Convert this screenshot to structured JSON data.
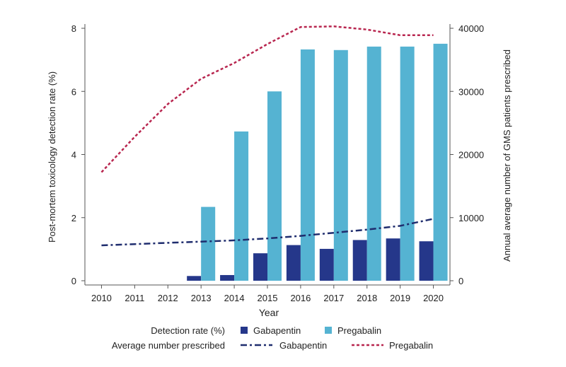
{
  "colors": {
    "gabapentin_bar": "#25378a",
    "pregabalin_bar": "#55b3d2",
    "gabapentin_line": "#1f2d6e",
    "pregabalin_line": "#b8264f",
    "axis": "#555555"
  },
  "chart_data": {
    "type": "bar",
    "categories": [
      "2010",
      "2011",
      "2012",
      "2013",
      "2014",
      "2015",
      "2016",
      "2017",
      "2018",
      "2019",
      "2020"
    ],
    "xlabel": "Year",
    "ylabel": "Post-mortem toxicology detection rate (%)",
    "ylabel_right": "Annual average number of GMS patients prescribed",
    "ylim": [
      0,
      8
    ],
    "ylim_right": [
      0,
      40000
    ],
    "yticks": [
      "0",
      "2",
      "4",
      "6",
      "8"
    ],
    "yticks_right": [
      "0",
      "10000",
      "20000",
      "30000",
      "40000"
    ],
    "bar_series": [
      {
        "name": "Gabapentin",
        "values": [
          0,
          0,
          0,
          0.15,
          0.18,
          0.87,
          1.13,
          1.01,
          1.29,
          1.34,
          1.25
        ]
      },
      {
        "name": "Pregabalin",
        "values": [
          0,
          0,
          0,
          2.34,
          4.73,
          6.0,
          7.33,
          7.31,
          7.42,
          7.42,
          7.51
        ]
      }
    ],
    "line_series": [
      {
        "name": "Gabapentin",
        "values": [
          5600,
          5800,
          6000,
          6200,
          6400,
          6700,
          7100,
          7600,
          8100,
          8700,
          9800
        ]
      },
      {
        "name": "Pregabalin",
        "values": [
          17200,
          22800,
          28000,
          32000,
          34500,
          37500,
          40200,
          40300,
          39800,
          38900,
          38900
        ]
      }
    ],
    "legend": {
      "detection_label": "Detection rate (%)",
      "prescribed_label": "Average number prescribed",
      "gabapentin": "Gabapentin",
      "pregabalin": "Pregabalin"
    }
  }
}
